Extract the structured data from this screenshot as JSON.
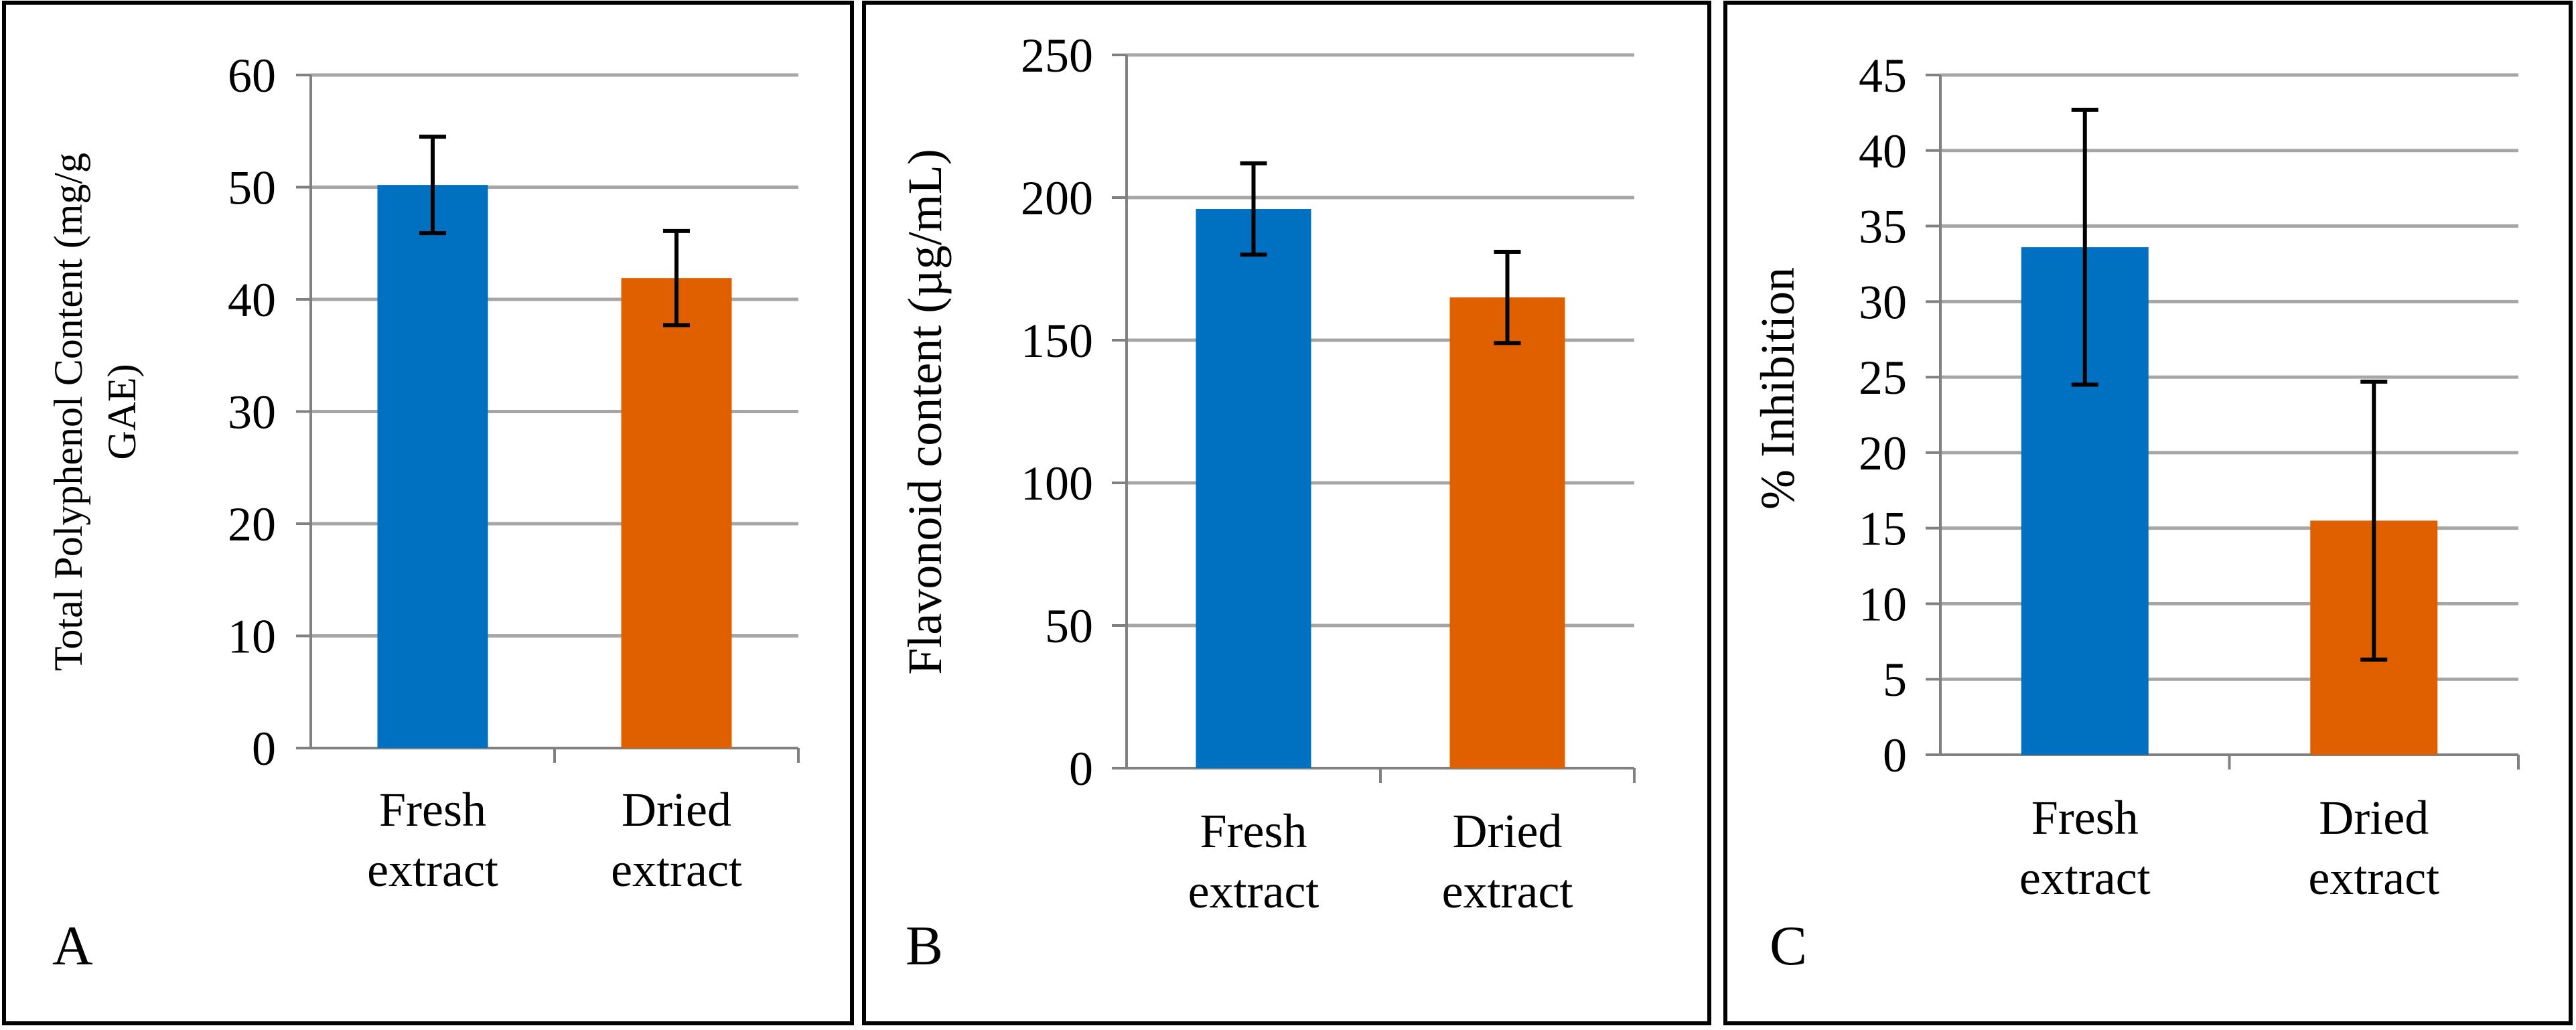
{
  "colors": {
    "fresh_bar": "#0070C0",
    "dried_bar": "#E06000",
    "grid": "#A6A6A6",
    "axis": "#808080",
    "frame": "#000000",
    "error_bar": "#000000"
  },
  "chart_data": [
    {
      "type": "bar",
      "panel_label": "A",
      "title": "",
      "categories": [
        [
          "Fresh",
          "extract"
        ],
        [
          "Dried",
          "extract"
        ]
      ],
      "values": [
        50.2,
        41.9
      ],
      "errors": [
        4.3,
        4.2
      ],
      "ylabel": [
        "Total  Polyphenol Content  (mg/g",
        "GAE)"
      ],
      "xlabel": "",
      "ylim": [
        0,
        60
      ],
      "yticks": [
        "0",
        "10",
        "20",
        "30",
        "40",
        "50",
        "60"
      ],
      "grid": true,
      "legend": "none"
    },
    {
      "type": "bar",
      "panel_label": "B",
      "title": "",
      "categories": [
        [
          "Fresh",
          "extract"
        ],
        [
          "Dried",
          "extract"
        ]
      ],
      "values": [
        196,
        165
      ],
      "errors": [
        16,
        16
      ],
      "ylabel": [
        "Flavonoid content (µg/mL)"
      ],
      "xlabel": "",
      "ylim": [
        0,
        250
      ],
      "yticks": [
        "0",
        "50",
        "100",
        "150",
        "200",
        "250"
      ],
      "grid": true,
      "legend": "none"
    },
    {
      "type": "bar",
      "panel_label": "C",
      "title": "",
      "categories": [
        [
          "Fresh",
          "extract"
        ],
        [
          "Dried",
          "extract"
        ]
      ],
      "values": [
        33.6,
        15.5
      ],
      "errors": [
        9.1,
        9.2
      ],
      "ylabel": [
        "% Inhibition"
      ],
      "xlabel": "",
      "ylim": [
        0,
        45
      ],
      "yticks": [
        "0",
        "5",
        "10",
        "15",
        "20",
        "25",
        "30",
        "35",
        "40",
        "45"
      ],
      "grid": true,
      "legend": "none"
    }
  ]
}
